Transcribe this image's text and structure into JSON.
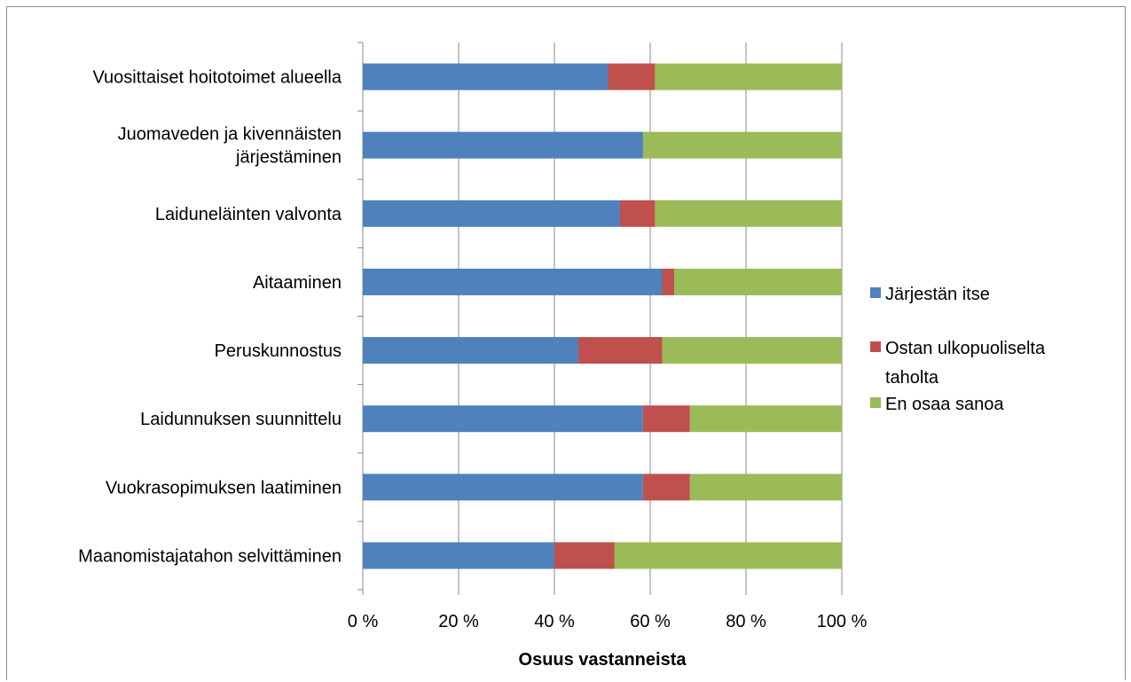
{
  "chart_data": {
    "type": "bar",
    "orientation": "horizontal",
    "stacked": "percent",
    "categories": [
      [
        "Vuosittaiset hoitotoimet alueella"
      ],
      [
        "Juomaveden ja kivennäisten",
        "järjestäminen"
      ],
      [
        "Laiduneläinten valvonta"
      ],
      [
        "Aitaaminen"
      ],
      [
        "Peruskunnostus"
      ],
      [
        "Laidunnuksen suunnittelu"
      ],
      [
        "Vuokrasopimuksen laatiminen"
      ],
      [
        "Maanomistajatahon selvittäminen"
      ]
    ],
    "series": [
      {
        "name": [
          "Järjestän itse"
        ],
        "color": "#4f81bd",
        "values": [
          51.2,
          58.5,
          53.7,
          62.5,
          45.0,
          58.5,
          58.5,
          40.0
        ]
      },
      {
        "name": [
          "Ostan ulkopuoliselta",
          "taholta"
        ],
        "color": "#c0504d",
        "values": [
          9.8,
          0,
          7.3,
          2.5,
          17.5,
          9.8,
          9.8,
          12.5
        ]
      },
      {
        "name": [
          "En osaa sanoa"
        ],
        "color": "#9bbb59",
        "values": [
          39.0,
          41.5,
          39.0,
          35.0,
          37.5,
          31.7,
          31.7,
          47.5
        ]
      }
    ],
    "x_ticks": [
      "0 %",
      "20 %",
      "40 %",
      "60 %",
      "80 %",
      "100 %"
    ],
    "xlim": [
      0,
      100
    ],
    "xlabel": "Osuus vastanneista",
    "grid": true,
    "legend_position": "right"
  }
}
